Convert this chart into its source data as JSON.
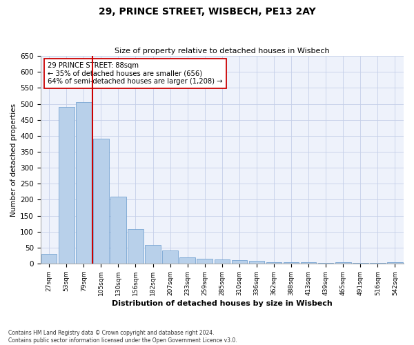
{
  "title": "29, PRINCE STREET, WISBECH, PE13 2AY",
  "subtitle": "Size of property relative to detached houses in Wisbech",
  "xlabel": "Distribution of detached houses by size in Wisbech",
  "ylabel": "Number of detached properties",
  "bar_color": "#b8d0ea",
  "bar_edge_color": "#6699cc",
  "categories": [
    "27sqm",
    "53sqm",
    "79sqm",
    "105sqm",
    "130sqm",
    "156sqm",
    "182sqm",
    "207sqm",
    "233sqm",
    "259sqm",
    "285sqm",
    "310sqm",
    "336sqm",
    "362sqm",
    "388sqm",
    "413sqm",
    "439sqm",
    "465sqm",
    "491sqm",
    "516sqm",
    "542sqm"
  ],
  "values": [
    30,
    490,
    505,
    390,
    210,
    107,
    59,
    40,
    19,
    15,
    12,
    11,
    9,
    5,
    5,
    5,
    1,
    5,
    1,
    1,
    5
  ],
  "ylim": [
    0,
    650
  ],
  "yticks": [
    0,
    50,
    100,
    150,
    200,
    250,
    300,
    350,
    400,
    450,
    500,
    550,
    600,
    650
  ],
  "vline_x": 2.5,
  "vline_color": "#cc0000",
  "annotation_line1": "29 PRINCE STREET: 88sqm",
  "annotation_line2": "← 35% of detached houses are smaller (656)",
  "annotation_line3": "64% of semi-detached houses are larger (1,208) →",
  "footer_line1": "Contains HM Land Registry data © Crown copyright and database right 2024.",
  "footer_line2": "Contains public sector information licensed under the Open Government Licence v3.0.",
  "background_color": "#eef2fb",
  "fig_bg_color": "#ffffff",
  "grid_color": "#c5cfe8"
}
